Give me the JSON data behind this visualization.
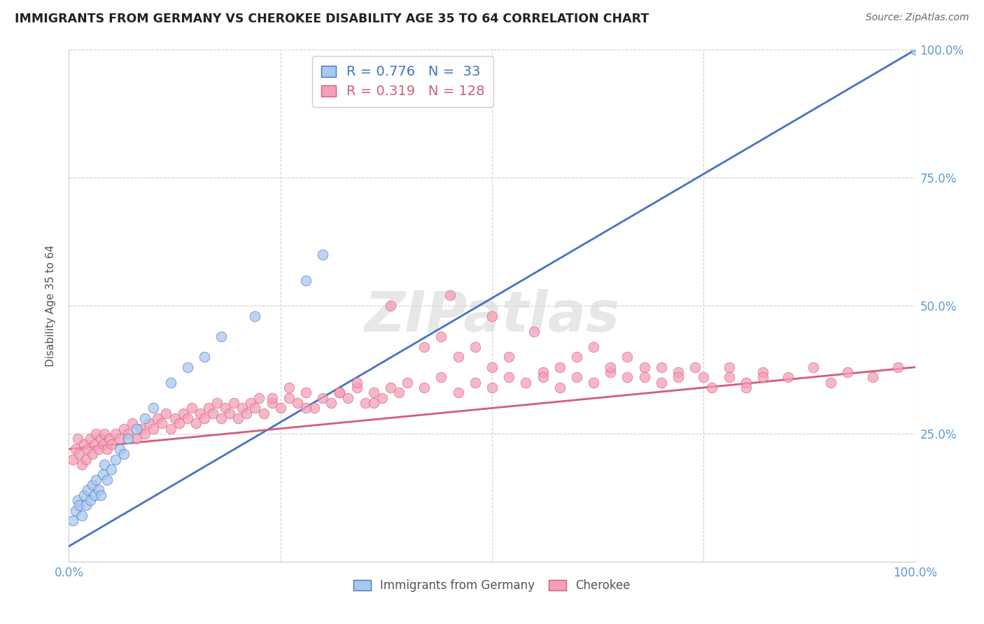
{
  "title": "IMMIGRANTS FROM GERMANY VS CHEROKEE DISABILITY AGE 35 TO 64 CORRELATION CHART",
  "source": "Source: ZipAtlas.com",
  "ylabel": "Disability Age 35 to 64",
  "xlim": [
    0.0,
    1.0
  ],
  "ylim": [
    0.0,
    1.0
  ],
  "blue_R": 0.776,
  "blue_N": 33,
  "pink_R": 0.319,
  "pink_N": 128,
  "blue_color": "#a8c8f0",
  "pink_color": "#f4a0b8",
  "blue_line_color": "#4472c4",
  "pink_line_color": "#d45c7a",
  "legend_label_blue": "Immigrants from Germany",
  "legend_label_pink": "Cherokee",
  "watermark": "ZIPatlas",
  "tick_color": "#5b9bd5",
  "blue_line_x0": 0.0,
  "blue_line_y0": 0.03,
  "blue_line_x1": 1.0,
  "blue_line_y1": 1.0,
  "pink_line_x0": 0.0,
  "pink_line_y0": 0.22,
  "pink_line_x1": 1.0,
  "pink_line_y1": 0.38,
  "blue_scatter_x": [
    0.005,
    0.008,
    0.01,
    0.012,
    0.015,
    0.018,
    0.02,
    0.022,
    0.025,
    0.028,
    0.03,
    0.032,
    0.035,
    0.038,
    0.04,
    0.042,
    0.045,
    0.05,
    0.055,
    0.06,
    0.065,
    0.07,
    0.08,
    0.09,
    0.1,
    0.12,
    0.14,
    0.16,
    0.18,
    0.22,
    0.28,
    0.3,
    1.0
  ],
  "blue_scatter_y": [
    0.08,
    0.1,
    0.12,
    0.11,
    0.09,
    0.13,
    0.11,
    0.14,
    0.12,
    0.15,
    0.13,
    0.16,
    0.14,
    0.13,
    0.17,
    0.19,
    0.16,
    0.18,
    0.2,
    0.22,
    0.21,
    0.24,
    0.26,
    0.28,
    0.3,
    0.35,
    0.38,
    0.4,
    0.44,
    0.48,
    0.55,
    0.6,
    1.0
  ],
  "pink_scatter_x": [
    0.005,
    0.008,
    0.01,
    0.012,
    0.015,
    0.018,
    0.02,
    0.022,
    0.025,
    0.028,
    0.03,
    0.032,
    0.035,
    0.038,
    0.04,
    0.042,
    0.045,
    0.048,
    0.05,
    0.055,
    0.06,
    0.065,
    0.07,
    0.075,
    0.08,
    0.085,
    0.09,
    0.095,
    0.1,
    0.105,
    0.11,
    0.115,
    0.12,
    0.125,
    0.13,
    0.135,
    0.14,
    0.145,
    0.15,
    0.155,
    0.16,
    0.165,
    0.17,
    0.175,
    0.18,
    0.185,
    0.19,
    0.195,
    0.2,
    0.205,
    0.21,
    0.215,
    0.22,
    0.225,
    0.23,
    0.24,
    0.25,
    0.26,
    0.27,
    0.28,
    0.29,
    0.3,
    0.31,
    0.32,
    0.33,
    0.34,
    0.35,
    0.36,
    0.37,
    0.38,
    0.39,
    0.4,
    0.42,
    0.44,
    0.46,
    0.48,
    0.5,
    0.52,
    0.54,
    0.56,
    0.58,
    0.6,
    0.62,
    0.64,
    0.66,
    0.68,
    0.7,
    0.72,
    0.75,
    0.78,
    0.8,
    0.82,
    0.85,
    0.88,
    0.9,
    0.92,
    0.95,
    0.98,
    0.38,
    0.45,
    0.5,
    0.55,
    0.24,
    0.26,
    0.28,
    0.32,
    0.34,
    0.36,
    0.6,
    0.62,
    0.64,
    0.66,
    0.68,
    0.7,
    0.72,
    0.74,
    0.76,
    0.78,
    0.8,
    0.82,
    0.42,
    0.44,
    0.46,
    0.48,
    0.5,
    0.52,
    0.56,
    0.58
  ],
  "pink_scatter_y": [
    0.2,
    0.22,
    0.24,
    0.21,
    0.19,
    0.23,
    0.2,
    0.22,
    0.24,
    0.21,
    0.23,
    0.25,
    0.22,
    0.24,
    0.23,
    0.25,
    0.22,
    0.24,
    0.23,
    0.25,
    0.24,
    0.26,
    0.25,
    0.27,
    0.24,
    0.26,
    0.25,
    0.27,
    0.26,
    0.28,
    0.27,
    0.29,
    0.26,
    0.28,
    0.27,
    0.29,
    0.28,
    0.3,
    0.27,
    0.29,
    0.28,
    0.3,
    0.29,
    0.31,
    0.28,
    0.3,
    0.29,
    0.31,
    0.28,
    0.3,
    0.29,
    0.31,
    0.3,
    0.32,
    0.29,
    0.31,
    0.3,
    0.32,
    0.31,
    0.33,
    0.3,
    0.32,
    0.31,
    0.33,
    0.32,
    0.34,
    0.31,
    0.33,
    0.32,
    0.34,
    0.33,
    0.35,
    0.34,
    0.36,
    0.33,
    0.35,
    0.34,
    0.36,
    0.35,
    0.37,
    0.34,
    0.36,
    0.35,
    0.37,
    0.36,
    0.38,
    0.35,
    0.37,
    0.36,
    0.38,
    0.35,
    0.37,
    0.36,
    0.38,
    0.35,
    0.37,
    0.36,
    0.38,
    0.5,
    0.52,
    0.48,
    0.45,
    0.32,
    0.34,
    0.3,
    0.33,
    0.35,
    0.31,
    0.4,
    0.42,
    0.38,
    0.4,
    0.36,
    0.38,
    0.36,
    0.38,
    0.34,
    0.36,
    0.34,
    0.36,
    0.42,
    0.44,
    0.4,
    0.42,
    0.38,
    0.4,
    0.36,
    0.38
  ]
}
